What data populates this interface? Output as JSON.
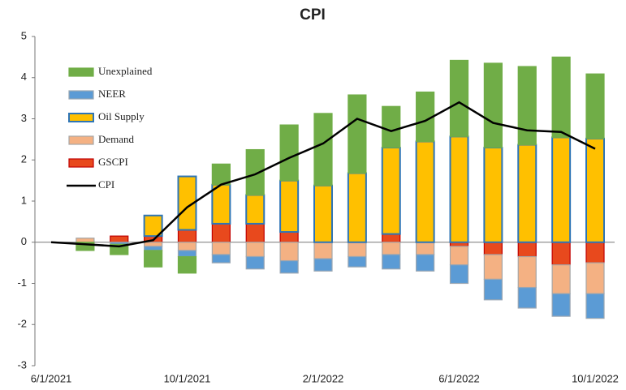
{
  "chart_data": {
    "type": "bar",
    "title": "CPI",
    "categories": [
      "6/1/2021",
      null,
      null,
      null,
      "10/1/2021",
      null,
      null,
      null,
      "2/1/2022",
      null,
      null,
      null,
      "6/1/2022",
      null,
      null,
      null,
      "10/1/2022"
    ],
    "series": [
      {
        "name": "Unexplained",
        "color": "#70ad47",
        "values": [
          0,
          -0.2,
          -0.25,
          -0.4,
          -0.4,
          0.5,
          1.1,
          1.35,
          1.75,
          1.9,
          1.0,
          1.2,
          1.85,
          2.05,
          1.9,
          1.95,
          1.57
        ]
      },
      {
        "name": "NEER",
        "color": "#5b9bd5",
        "values": [
          0,
          0,
          -0.05,
          -0.1,
          -0.15,
          -0.2,
          -0.3,
          -0.3,
          -0.3,
          -0.25,
          -0.35,
          -0.4,
          -0.45,
          -0.5,
          -0.5,
          -0.55,
          -0.6
        ]
      },
      {
        "name": "Oil Supply",
        "color": "#ffc000",
        "values": [
          0,
          0,
          0,
          0.5,
          1.3,
          0.95,
          0.7,
          1.25,
          1.38,
          1.68,
          2.1,
          2.45,
          2.57,
          2.3,
          2.37,
          2.55,
          2.52
        ]
      },
      {
        "name": "Demand",
        "color": "#f4b183",
        "values": [
          0,
          0.1,
          0,
          -0.1,
          -0.2,
          -0.3,
          -0.35,
          -0.45,
          -0.4,
          -0.35,
          -0.3,
          -0.3,
          -0.45,
          -0.6,
          -0.75,
          -0.7,
          -0.75
        ]
      },
      {
        "name": "GSCPI",
        "color": "#e8491d",
        "values": [
          0,
          0,
          0.15,
          0.15,
          0.3,
          0.45,
          0.45,
          0.25,
          0,
          0,
          0.2,
          0,
          -0.1,
          -0.3,
          -0.35,
          -0.55,
          -0.5
        ]
      },
      {
        "name": "CPI",
        "color": "#000000",
        "type": "line",
        "values": [
          0,
          -0.05,
          -0.1,
          0.05,
          0.85,
          1.4,
          1.65,
          2.05,
          2.4,
          3.0,
          2.7,
          2.95,
          3.4,
          2.9,
          2.72,
          2.68,
          2.27
        ]
      }
    ],
    "ylim": [
      -3,
      5
    ],
    "yticks": [
      -3,
      -2,
      -1,
      0,
      1,
      2,
      3,
      4,
      5
    ],
    "grid": false,
    "legend": "upper left"
  }
}
